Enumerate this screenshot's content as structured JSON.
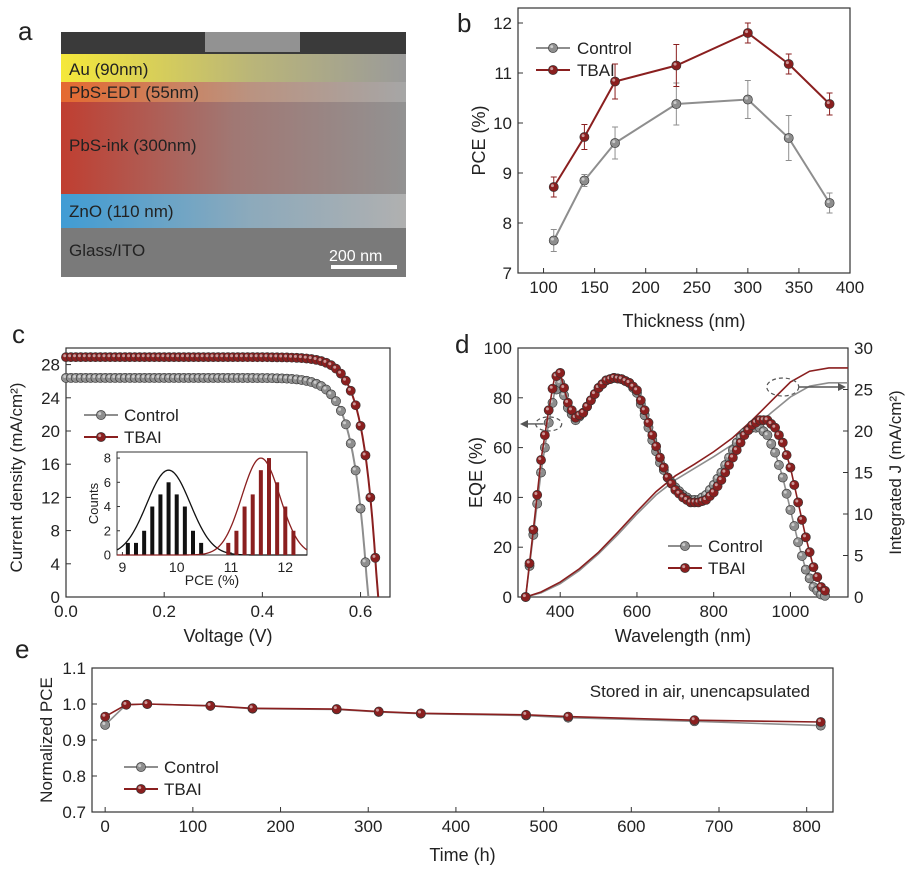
{
  "colors": {
    "control": "#8e8e8e",
    "tbai": "#8a1f1f",
    "axis": "#333333",
    "black": "#111111"
  },
  "panel_letters": {
    "a": "a",
    "b": "b",
    "c": "c",
    "d": "d",
    "e": "e"
  },
  "sem": {
    "layers": [
      {
        "label": "Au (90nm)",
        "color": "#f2e63c"
      },
      {
        "label": "PbS-EDT (55nm)",
        "color": "#e4702d"
      },
      {
        "label": "PbS-ink (300nm)",
        "color": "#c0392b"
      },
      {
        "label": "ZnO (110 nm)",
        "color": "#3a9bd6"
      },
      {
        "label": "Glass/ITO",
        "color": "#777777"
      }
    ],
    "scalebar": "200 nm"
  },
  "chart_data": [
    {
      "panel": "b",
      "type": "line",
      "xlabel": "Thickness (nm)",
      "ylabel": "PCE (%)",
      "xlim": [
        75,
        400
      ],
      "ylim": [
        7,
        12.3
      ],
      "xticks": [
        100,
        150,
        200,
        250,
        300,
        350,
        400
      ],
      "yticks": [
        7,
        8,
        9,
        10,
        11,
        12
      ],
      "legend": "top-left",
      "series": [
        {
          "name": "Control",
          "x": [
            110,
            140,
            170,
            230,
            300,
            340,
            380
          ],
          "y": [
            7.65,
            8.85,
            9.6,
            10.38,
            10.47,
            9.7,
            8.4
          ],
          "err": [
            0.22,
            0.12,
            0.32,
            0.42,
            0.38,
            0.45,
            0.2
          ]
        },
        {
          "name": "TBAI",
          "x": [
            110,
            140,
            170,
            230,
            300,
            340,
            380
          ],
          "y": [
            8.72,
            9.72,
            10.83,
            11.15,
            11.8,
            11.18,
            10.38
          ],
          "err": [
            0.2,
            0.25,
            0.35,
            0.42,
            0.2,
            0.2,
            0.22
          ]
        }
      ]
    },
    {
      "panel": "c",
      "type": "line",
      "xlabel": "Voltage (V)",
      "ylabel": "Current density (mA/cm²)",
      "xlim": [
        0,
        0.66
      ],
      "ylim": [
        0,
        30
      ],
      "xticks": [
        0.0,
        0.2,
        0.4,
        0.6
      ],
      "xticklabels": [
        "0.0",
        "0.2",
        "0.4",
        "0.6"
      ],
      "yticks": [
        0,
        4,
        8,
        12,
        16,
        20,
        24,
        28
      ],
      "legend": "middle-left",
      "series": [
        {
          "name": "Control",
          "jsc": 26.4,
          "voc": 0.615,
          "n": 0.029
        },
        {
          "name": "TBAI",
          "jsc": 28.9,
          "voc": 0.635,
          "n": 0.028
        }
      ],
      "inset": {
        "type": "bar",
        "xlabel": "PCE (%)",
        "ylabel": "Counts",
        "xlim": [
          8.9,
          12.4
        ],
        "ylim": [
          0,
          8.5
        ],
        "xticks": [
          9,
          10,
          11,
          12
        ],
        "yticks": [
          0,
          2,
          4,
          6,
          8
        ],
        "series": [
          {
            "name": "Control",
            "centers": [
              9.1,
              9.25,
              9.4,
              9.55,
              9.7,
              9.85,
              10.0,
              10.15,
              10.3,
              10.45
            ],
            "counts": [
              1,
              1,
              2,
              4,
              5,
              6,
              5,
              4,
              2,
              1
            ],
            "mu": 9.85,
            "sigma": 0.4,
            "peak": 7.0
          },
          {
            "name": "TBAI",
            "centers": [
              10.95,
              11.1,
              11.25,
              11.4,
              11.55,
              11.7,
              11.85,
              12.0,
              12.15
            ],
            "counts": [
              1,
              2,
              4,
              5,
              7,
              8,
              6,
              4,
              2
            ],
            "mu": 11.55,
            "sigma": 0.35,
            "peak": 8.0
          }
        ]
      }
    },
    {
      "panel": "d",
      "type": "line",
      "xlabel": "Wavelength (nm)",
      "ylabel": "EQE (%)",
      "ylabel_right": "Integrated J (mA/cm²)",
      "xlim": [
        290,
        1150
      ],
      "ylim": [
        0,
        100
      ],
      "ylim_right": [
        0,
        30
      ],
      "xticks": [
        400,
        600,
        800,
        1000
      ],
      "yticks": [
        0,
        20,
        40,
        60,
        80,
        100
      ],
      "yticks_right": [
        0,
        5,
        10,
        15,
        20,
        25,
        30
      ],
      "legend": "bottom-right",
      "series": [
        {
          "name": "Control",
          "x": [
            310,
            330,
            350,
            370,
            385,
            400,
            420,
            440,
            460,
            480,
            500,
            520,
            540,
            560,
            580,
            600,
            620,
            640,
            660,
            680,
            700,
            720,
            740,
            760,
            780,
            800,
            820,
            840,
            860,
            880,
            900,
            920,
            940,
            960,
            980,
            1000,
            1020,
            1040,
            1060,
            1080,
            1100
          ],
          "y": [
            0,
            25,
            50,
            70,
            82,
            86,
            76,
            71,
            74,
            79,
            84,
            87,
            88,
            87.5,
            86,
            82,
            73,
            63,
            54,
            48,
            44,
            41,
            39,
            39,
            41,
            45,
            50,
            56,
            62,
            66,
            68,
            68,
            65,
            58,
            48,
            35,
            22,
            11,
            4,
            1,
            0
          ]
        },
        {
          "name": "TBAI",
          "x": [
            310,
            330,
            350,
            370,
            385,
            400,
            420,
            440,
            460,
            480,
            500,
            520,
            540,
            560,
            580,
            600,
            620,
            640,
            660,
            680,
            700,
            720,
            740,
            760,
            780,
            800,
            820,
            840,
            860,
            880,
            900,
            920,
            940,
            960,
            980,
            1000,
            1020,
            1040,
            1060,
            1080,
            1100
          ],
          "y": [
            0,
            27,
            55,
            75,
            88,
            90,
            78,
            72,
            74,
            79,
            84,
            87,
            88,
            87.5,
            86,
            83,
            75,
            65,
            56,
            48,
            43,
            40,
            38,
            38,
            39,
            42,
            47,
            53,
            59,
            65,
            69,
            71,
            71,
            68,
            62,
            52,
            38,
            24,
            12,
            4,
            1
          ]
        },
        {
          "name": "Control integrated J",
          "axis": "right",
          "x": [
            310,
            350,
            400,
            450,
            500,
            550,
            600,
            650,
            700,
            750,
            800,
            850,
            900,
            950,
            1000,
            1050,
            1100,
            1150
          ],
          "y": [
            0,
            0.5,
            1.6,
            3.2,
            5.2,
            7.5,
            10,
            12.3,
            14.1,
            15.5,
            16.9,
            18.4,
            20.2,
            22.2,
            24.1,
            25.4,
            25.8,
            25.8
          ]
        },
        {
          "name": "TBAI integrated J",
          "axis": "right",
          "x": [
            310,
            350,
            400,
            450,
            500,
            550,
            600,
            650,
            700,
            750,
            800,
            850,
            900,
            950,
            1000,
            1050,
            1100,
            1150
          ],
          "y": [
            0,
            0.6,
            1.8,
            3.4,
            5.4,
            7.8,
            10.3,
            12.7,
            14.6,
            16.0,
            17.5,
            19.2,
            21.3,
            23.6,
            25.9,
            27.2,
            27.6,
            27.6
          ]
        }
      ]
    },
    {
      "panel": "e",
      "type": "line",
      "xlabel": "Time (h)",
      "ylabel": "Normalized PCE",
      "xlim": [
        -15,
        830
      ],
      "ylim": [
        0.7,
        1.1
      ],
      "xticks": [
        0,
        100,
        200,
        300,
        400,
        500,
        600,
        700,
        800
      ],
      "yticks": [
        0.7,
        0.8,
        0.9,
        1.0,
        1.1
      ],
      "yticklabels": [
        "0.7",
        "0.8",
        "0.9",
        "1.0",
        "1.1"
      ],
      "annotation": "Stored in air, unencapsulated",
      "legend": "bottom-left",
      "series": [
        {
          "name": "Control",
          "x": [
            0,
            24,
            48,
            120,
            168,
            264,
            312,
            360,
            480,
            528,
            672,
            816
          ],
          "y": [
            0.942,
            0.998,
            1.0,
            0.995,
            0.987,
            0.985,
            0.978,
            0.973,
            0.968,
            0.962,
            0.952,
            0.94
          ]
        },
        {
          "name": "TBAI",
          "x": [
            0,
            24,
            48,
            120,
            168,
            264,
            312,
            360,
            480,
            528,
            672,
            816
          ],
          "y": [
            0.965,
            0.998,
            1.0,
            0.995,
            0.988,
            0.986,
            0.979,
            0.974,
            0.97,
            0.965,
            0.955,
            0.95
          ]
        }
      ]
    }
  ]
}
